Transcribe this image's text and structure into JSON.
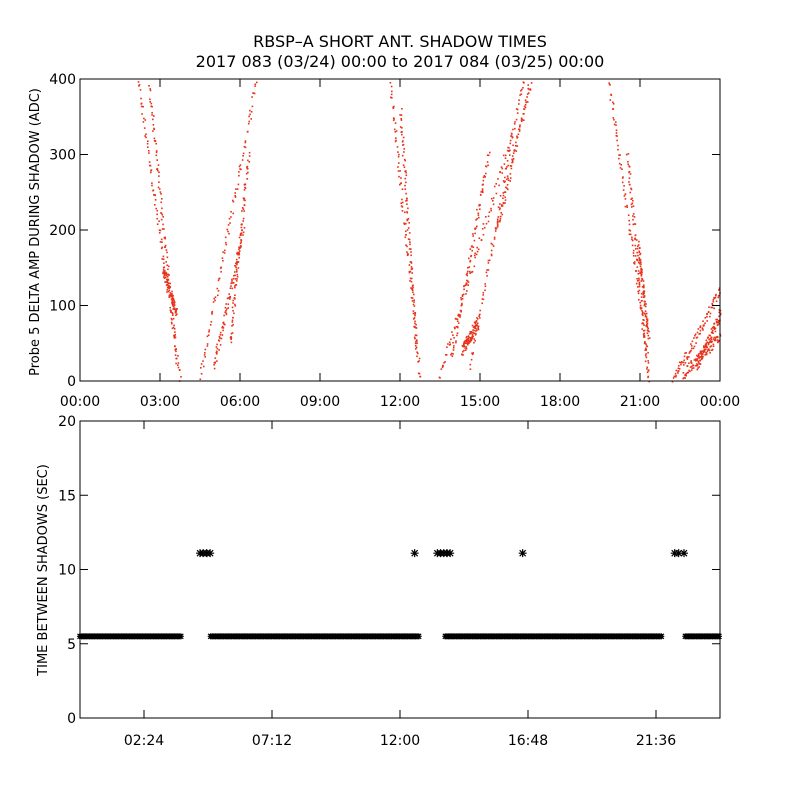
{
  "title_line1": "RBSP–A SHORT ANT. SHADOW TIMES",
  "title_line2": "2017 083 (03/24) 00:00 to 2017 084 (03/25) 00:00",
  "colors": {
    "points": "#e8321a",
    "markers": "#000000",
    "background": "#ffffff"
  },
  "chart_data": [
    {
      "type": "scatter",
      "ylabel": "Probe 5 DELTA AMP DURING SHADOW (ADC)",
      "xlabel": "",
      "xlim": [
        0,
        24
      ],
      "ylim": [
        0,
        400
      ],
      "x_tick_labels": [
        "00:00",
        "03:00",
        "06:00",
        "09:00",
        "12:00",
        "15:00",
        "18:00",
        "21:00",
        "00:00"
      ],
      "x_tick_hours": [
        0,
        3,
        6,
        9,
        12,
        15,
        18,
        21,
        24
      ],
      "y_tick_labels": [
        "0",
        "100",
        "200",
        "300",
        "400"
      ],
      "y_ticks": [
        0,
        100,
        200,
        300,
        400
      ],
      "series": [
        {
          "segments": [
            {
              "x0": 2.15,
              "x1": 3.75,
              "y0": 400,
              "y1": 0
            },
            {
              "x0": 2.55,
              "x1": 3.6,
              "y0": 400,
              "y1": 30
            },
            {
              "x0": 3.1,
              "x1": 3.6,
              "y0": 150,
              "y1": 90
            },
            {
              "x0": 4.45,
              "x1": 6.6,
              "y0": 0,
              "y1": 400
            },
            {
              "x0": 5.0,
              "x1": 6.1,
              "y0": 20,
              "y1": 200
            },
            {
              "x0": 5.6,
              "x1": 6.3,
              "y0": 50,
              "y1": 300
            },
            {
              "x0": 11.6,
              "x1": 12.75,
              "y0": 400,
              "y1": 0
            },
            {
              "x0": 12.0,
              "x1": 12.6,
              "y0": 360,
              "y1": 40
            },
            {
              "x0": 13.4,
              "x1": 16.2,
              "y0": 0,
              "y1": 330
            },
            {
              "x0": 13.9,
              "x1": 15.3,
              "y0": 30,
              "y1": 300
            },
            {
              "x0": 14.6,
              "x1": 16.6,
              "y0": 20,
              "y1": 400
            },
            {
              "x0": 15.6,
              "x1": 16.9,
              "y0": 200,
              "y1": 400
            },
            {
              "x0": 14.3,
              "x1": 14.9,
              "y0": 40,
              "y1": 80
            },
            {
              "x0": 19.8,
              "x1": 21.3,
              "y0": 400,
              "y1": 20
            },
            {
              "x0": 20.5,
              "x1": 21.3,
              "y0": 300,
              "y1": 0
            },
            {
              "x0": 20.9,
              "x1": 21.3,
              "y0": 180,
              "y1": 60
            },
            {
              "x0": 22.2,
              "x1": 24.0,
              "y0": 0,
              "y1": 120
            },
            {
              "x0": 22.6,
              "x1": 24.0,
              "y0": 10,
              "y1": 60
            },
            {
              "x0": 23.1,
              "x1": 24.0,
              "y0": 20,
              "y1": 90
            }
          ]
        }
      ]
    },
    {
      "type": "scatter",
      "ylabel": "TIME BETWEEN SHADOWS (SEC)",
      "xlabel": "",
      "xlim": [
        0,
        24
      ],
      "ylim": [
        0,
        20
      ],
      "x_tick_labels": [
        "02:24",
        "07:12",
        "12:00",
        "16:48",
        "21:36"
      ],
      "x_tick_hours": [
        2.4,
        7.2,
        12.0,
        16.8,
        21.6
      ],
      "y_tick_labels": [
        "0",
        "5",
        "10",
        "15",
        "20"
      ],
      "y_ticks": [
        0,
        5,
        10,
        15,
        20
      ],
      "series": [
        {
          "name": "",
          "y": 5.5,
          "ranges": [
            [
              0.0,
              3.8
            ],
            [
              4.9,
              12.75
            ],
            [
              13.7,
              21.8
            ],
            [
              22.7,
              24.0
            ]
          ]
        },
        {
          "name": "",
          "y": 11.1,
          "points": [
            4.5,
            4.62,
            4.75,
            4.88,
            12.55,
            13.4,
            13.52,
            13.64,
            13.76,
            13.88,
            16.6,
            22.3,
            22.45,
            22.65
          ]
        }
      ]
    }
  ]
}
